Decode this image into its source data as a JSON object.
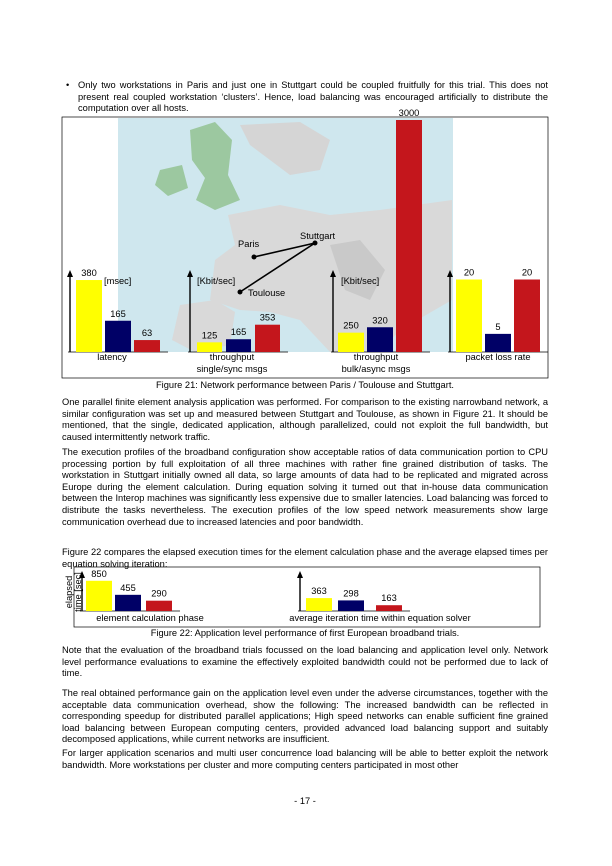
{
  "bullet": "Only two workstations in Paris and just one in Stuttgart could be coupled fruitfully for this trial. This does not present real coupled workstation ‘clusters’. Hence, load balancing was encouraged artificially to distribute the computation over all hosts.",
  "figure_21": {
    "caption": "Figure 21: Network performance between Paris / Toulouse and Stuttgart.",
    "map_labels": [
      "Paris",
      "Stuttgart",
      "Toulouse"
    ]
  },
  "figure_22": {
    "caption": "Figure 22: Application level performance of first European broadband trials.",
    "ylabel": [
      "elapsed",
      "time [sec]"
    ]
  },
  "paragraphs": [
    "One parallel finite element analysis application was performed. For comparison to the existing narrowband network, a similar configuration was set up and measured between Stuttgart and Toulouse, as shown in Figure 21. It should be mentioned, that the single, dedicated application, although parallelized, could not exploit the full bandwidth, but caused intermittently network traffic.",
    "The execution profiles of the broadband configuration show acceptable ratios of data communication portion to CPU processing portion by full exploitation of all three machines with rather fine grained distribution of tasks. The workstation in Stuttgart initially owned all data, so large amounts of data had to be replicated and migrated across Europe during the element calculation. During equation solving it turned out that in-house data communication between the Interop machines was significantly less expensive due to smaller latencies. Load balancing was forced to distribute the tasks nevertheless. The execution profiles of the low speed network measurements show large communication overhead due to increased latencies and poor bandwidth.",
    "Figure 22 compares the elapsed execution times for the element calculation phase and the average elapsed times per equation solving iteration:",
    "Note that the evaluation of the broadband trials focussed on the load balancing and application level only. Network level performance evaluations to examine the effectively exploited bandwidth could not be performed due to lack of time.",
    "The real obtained performance gain on the application level even under the adverse circumstances, together with the acceptable data communication overhead, show the following: The increased bandwidth can be reflected in corresponding speedup for distributed parallel applications; High speed networks can enable sufficient fine grained load balancing between European computing centers, provided advanced load balancing support and suitably decomposed applications, while current networks are insufficient.",
    "For larger application scenarios and multi user concurrence load balancing will be able to better exploit the network bandwidth. More workstations per cluster and more computing centers participated in most other"
  ],
  "footer": "- 17 -",
  "chart_data": [
    {
      "type": "bar",
      "label": [
        "latency"
      ],
      "unit": "[msec]",
      "values": [
        380,
        165,
        63
      ],
      "colors": [
        "#ffff00",
        "#000066",
        "#c4161c"
      ],
      "ylim": [
        0,
        1225
      ]
    },
    {
      "type": "bar",
      "label": [
        "throughput",
        "single/sync msgs"
      ],
      "unit": "[Kbit/sec]",
      "values": [
        125,
        165,
        353
      ],
      "colors": [
        "#ffff00",
        "#000066",
        "#c4161c"
      ],
      "ylim": [
        0,
        3000
      ]
    },
    {
      "type": "bar",
      "label": [
        "throughput",
        "bulk/async msgs"
      ],
      "unit": "[Kbit/sec]",
      "values": [
        250,
        320,
        3000
      ],
      "colors": [
        "#ffff00",
        "#000066",
        "#c4161c"
      ],
      "ylim": [
        0,
        3000
      ]
    },
    {
      "type": "bar",
      "label": [
        "packet loss rate"
      ],
      "values": [
        20,
        5,
        20
      ],
      "colors": [
        "#ffff00",
        "#000066",
        "#c4161c"
      ],
      "ylim": [
        0,
        64
      ]
    },
    {
      "type": "bar",
      "label": [
        "element calculation phase"
      ],
      "values": [
        850,
        455,
        290
      ],
      "colors": [
        "#ffff00",
        "#000066",
        "#c4161c"
      ],
      "ylim": [
        0,
        900
      ]
    },
    {
      "type": "bar",
      "label": [
        "average iteration time within equation solver"
      ],
      "values": [
        363,
        298,
        163
      ],
      "colors": [
        "#ffff00",
        "#000066",
        "#c4161c"
      ],
      "ylim": [
        0,
        900
      ]
    }
  ]
}
